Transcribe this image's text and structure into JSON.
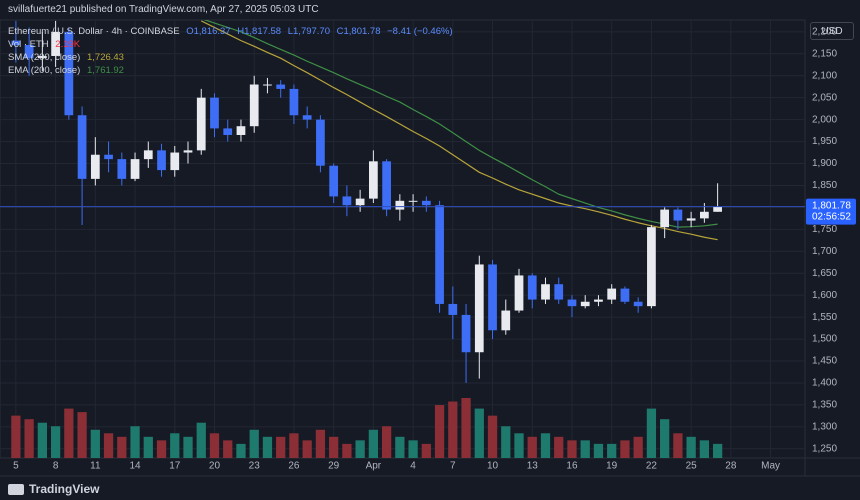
{
  "header": {
    "title": "svillafuerte21 published on TradingView.com, Apr 27, 2025 05:03 UTC",
    "brand": "TradingView",
    "currency": "USD"
  },
  "chart_data": {
    "type": "candlestick",
    "symbol": "Ethereum / U.S. Dollar · 4h · COINBASE",
    "ohlc": [
      "O1,816.37",
      "H1,817.58",
      "L1,797.70",
      "C1,801.78"
    ],
    "change": "−8.41 (−0.46%)",
    "volume_name": "Vol · ETH",
    "volume_label": "2.19K",
    "up_color": "#e8eaf0",
    "down_color": "#3d6ef5",
    "volume_up_color": "#1f7a6e",
    "volume_down_color": "#8c2e35",
    "x": [
      0,
      1,
      2,
      3,
      4,
      5,
      6,
      7,
      8,
      9,
      10,
      11,
      12,
      13,
      14,
      15,
      16,
      17,
      18,
      19,
      20,
      21,
      22,
      23,
      24,
      25,
      26,
      27,
      28,
      29,
      30,
      31,
      32,
      33,
      34,
      35,
      36,
      37,
      38,
      39,
      40,
      41,
      42,
      43,
      44,
      45,
      46,
      47,
      48,
      49,
      50,
      51,
      52,
      53
    ],
    "open": [
      2180,
      2170,
      2140,
      2145,
      2200,
      2010,
      1865,
      1920,
      1910,
      1865,
      1910,
      1930,
      1885,
      1925,
      1930,
      2050,
      1980,
      1965,
      1985,
      2080,
      2080,
      2070,
      2010,
      2000,
      1895,
      1825,
      1805,
      1820,
      1905,
      1795,
      1815,
      1815,
      1805,
      1580,
      1555,
      1470,
      1670,
      1520,
      1565,
      1645,
      1590,
      1625,
      1590,
      1575,
      1585,
      1590,
      1615,
      1585,
      1575,
      1755,
      1795,
      1770,
      1775,
      1790
    ],
    "high": [
      2225,
      2210,
      2200,
      2225,
      2210,
      2030,
      1960,
      1950,
      1925,
      1925,
      1950,
      1945,
      1940,
      1950,
      2070,
      2060,
      2000,
      2000,
      2100,
      2095,
      2090,
      2080,
      2030,
      2010,
      1900,
      1850,
      1840,
      1930,
      1910,
      1830,
      1830,
      1825,
      1815,
      1620,
      1580,
      1690,
      1680,
      1590,
      1660,
      1650,
      1640,
      1640,
      1600,
      1600,
      1600,
      1625,
      1620,
      1595,
      1760,
      1800,
      1800,
      1790,
      1810,
      1855
    ],
    "low": [
      2130,
      2100,
      2110,
      2120,
      2000,
      1760,
      1850,
      1880,
      1850,
      1860,
      1890,
      1870,
      1870,
      1900,
      1920,
      1960,
      1950,
      1950,
      1970,
      2060,
      2050,
      1990,
      1980,
      1880,
      1810,
      1780,
      1790,
      1810,
      1780,
      1770,
      1790,
      1790,
      1560,
      1500,
      1400,
      1410,
      1500,
      1510,
      1560,
      1570,
      1580,
      1580,
      1550,
      1570,
      1575,
      1580,
      1580,
      1560,
      1570,
      1730,
      1750,
      1755,
      1765,
      1790
    ],
    "close": [
      2170,
      2140,
      2145,
      2200,
      2010,
      1865,
      1920,
      1910,
      1865,
      1910,
      1930,
      1885,
      1925,
      1930,
      2050,
      1980,
      1965,
      1985,
      2080,
      2080,
      2070,
      2010,
      2000,
      1895,
      1825,
      1805,
      1820,
      1905,
      1795,
      1815,
      1815,
      1805,
      1580,
      1555,
      1470,
      1670,
      1520,
      1565,
      1645,
      1590,
      1625,
      1590,
      1575,
      1585,
      1590,
      1615,
      1585,
      1575,
      1755,
      1795,
      1770,
      1775,
      1790,
      1801.78
    ],
    "volume": [
      60000,
      55000,
      50000,
      45000,
      70000,
      65000,
      40000,
      35000,
      30000,
      45000,
      30000,
      25000,
      35000,
      30000,
      50000,
      35000,
      25000,
      20000,
      40000,
      30000,
      30000,
      35000,
      25000,
      40000,
      30000,
      20000,
      25000,
      40000,
      45000,
      30000,
      25000,
      20000,
      75000,
      80000,
      85000,
      70000,
      60000,
      45000,
      35000,
      30000,
      35000,
      30000,
      25000,
      25000,
      20000,
      20000,
      25000,
      30000,
      70000,
      55000,
      35000,
      30000,
      25000,
      20000
    ],
    "series": [
      {
        "name": "SMA (200, close)",
        "color": "#b8a53a",
        "last_value_label": "1,726.43",
        "values": [
          null,
          null,
          null,
          null,
          null,
          null,
          null,
          null,
          null,
          null,
          null,
          null,
          null,
          null,
          2225,
          2210,
          2195,
          2180,
          2167,
          2153,
          2140,
          2123,
          2107,
          2090,
          2073,
          2057,
          2040,
          2023,
          2007,
          1990,
          1973,
          1957,
          1940,
          1920,
          1900,
          1880,
          1867,
          1853,
          1840,
          1830,
          1820,
          1810,
          1803,
          1797,
          1790,
          1782,
          1773,
          1765,
          1758,
          1752,
          1745,
          1739,
          1732,
          1726.43
        ]
      },
      {
        "name": "EMA (200, close)",
        "color": "#3f8f45",
        "last_value_label": "1,761.92",
        "values": [
          null,
          null,
          null,
          null,
          null,
          null,
          null,
          null,
          null,
          null,
          null,
          null,
          null,
          null,
          2230,
          2220,
          2210,
          2200,
          2187,
          2173,
          2160,
          2147,
          2133,
          2120,
          2107,
          2093,
          2080,
          2067,
          2053,
          2040,
          2023,
          2007,
          1990,
          1970,
          1950,
          1930,
          1913,
          1897,
          1880,
          1863,
          1847,
          1830,
          1820,
          1810,
          1800,
          1792,
          1783,
          1775,
          1768,
          1762,
          1755,
          1756,
          1758,
          1761.92
        ]
      }
    ],
    "last_price": {
      "value": 1801.78,
      "label": "1,801.78"
    },
    "countdown": "02:56:52",
    "ylim": [
      1229,
      2227
    ],
    "yticks": [
      {
        "value": 1250,
        "label": "1,250"
      },
      {
        "value": 1300,
        "label": "1,300"
      },
      {
        "value": 1350,
        "label": "1,350"
      },
      {
        "value": 1400,
        "label": "1,400"
      },
      {
        "value": 1450,
        "label": "1,450"
      },
      {
        "value": 1500,
        "label": "1,500"
      },
      {
        "value": 1550,
        "label": "1,550"
      },
      {
        "value": 1600,
        "label": "1,600"
      },
      {
        "value": 1650,
        "label": "1,650"
      },
      {
        "value": 1700,
        "label": "1,700"
      },
      {
        "value": 1750,
        "label": "1,750"
      },
      {
        "value": 1800,
        "label": "1,800"
      },
      {
        "value": 1850,
        "label": "1,850"
      },
      {
        "value": 1900,
        "label": "1,900"
      },
      {
        "value": 1950,
        "label": "1,950"
      },
      {
        "value": 2000,
        "label": "2,000"
      },
      {
        "value": 2050,
        "label": "2,050"
      },
      {
        "value": 2100,
        "label": "2,100"
      },
      {
        "value": 2150,
        "label": "2,150"
      },
      {
        "value": 2200,
        "label": "2,200"
      }
    ],
    "xlim": [
      -1.2,
      59.6
    ],
    "xticks": [
      {
        "value": 0,
        "label": "5"
      },
      {
        "value": 3,
        "label": "8"
      },
      {
        "value": 6,
        "label": "11"
      },
      {
        "value": 9,
        "label": "14"
      },
      {
        "value": 12,
        "label": "17"
      },
      {
        "value": 15,
        "label": "20"
      },
      {
        "value": 18,
        "label": "23"
      },
      {
        "value": 21,
        "label": "26"
      },
      {
        "value": 24,
        "label": "29"
      },
      {
        "value": 27,
        "label": "Apr"
      },
      {
        "value": 30,
        "label": "4"
      },
      {
        "value": 33,
        "label": "7"
      },
      {
        "value": 36,
        "label": "10"
      },
      {
        "value": 39,
        "label": "13"
      },
      {
        "value": 42,
        "label": "16"
      },
      {
        "value": 45,
        "label": "19"
      },
      {
        "value": 48,
        "label": "22"
      },
      {
        "value": 51,
        "label": "25"
      },
      {
        "value": 54,
        "label": "28"
      },
      {
        "value": 57,
        "label": "May"
      }
    ],
    "grid": true
  }
}
